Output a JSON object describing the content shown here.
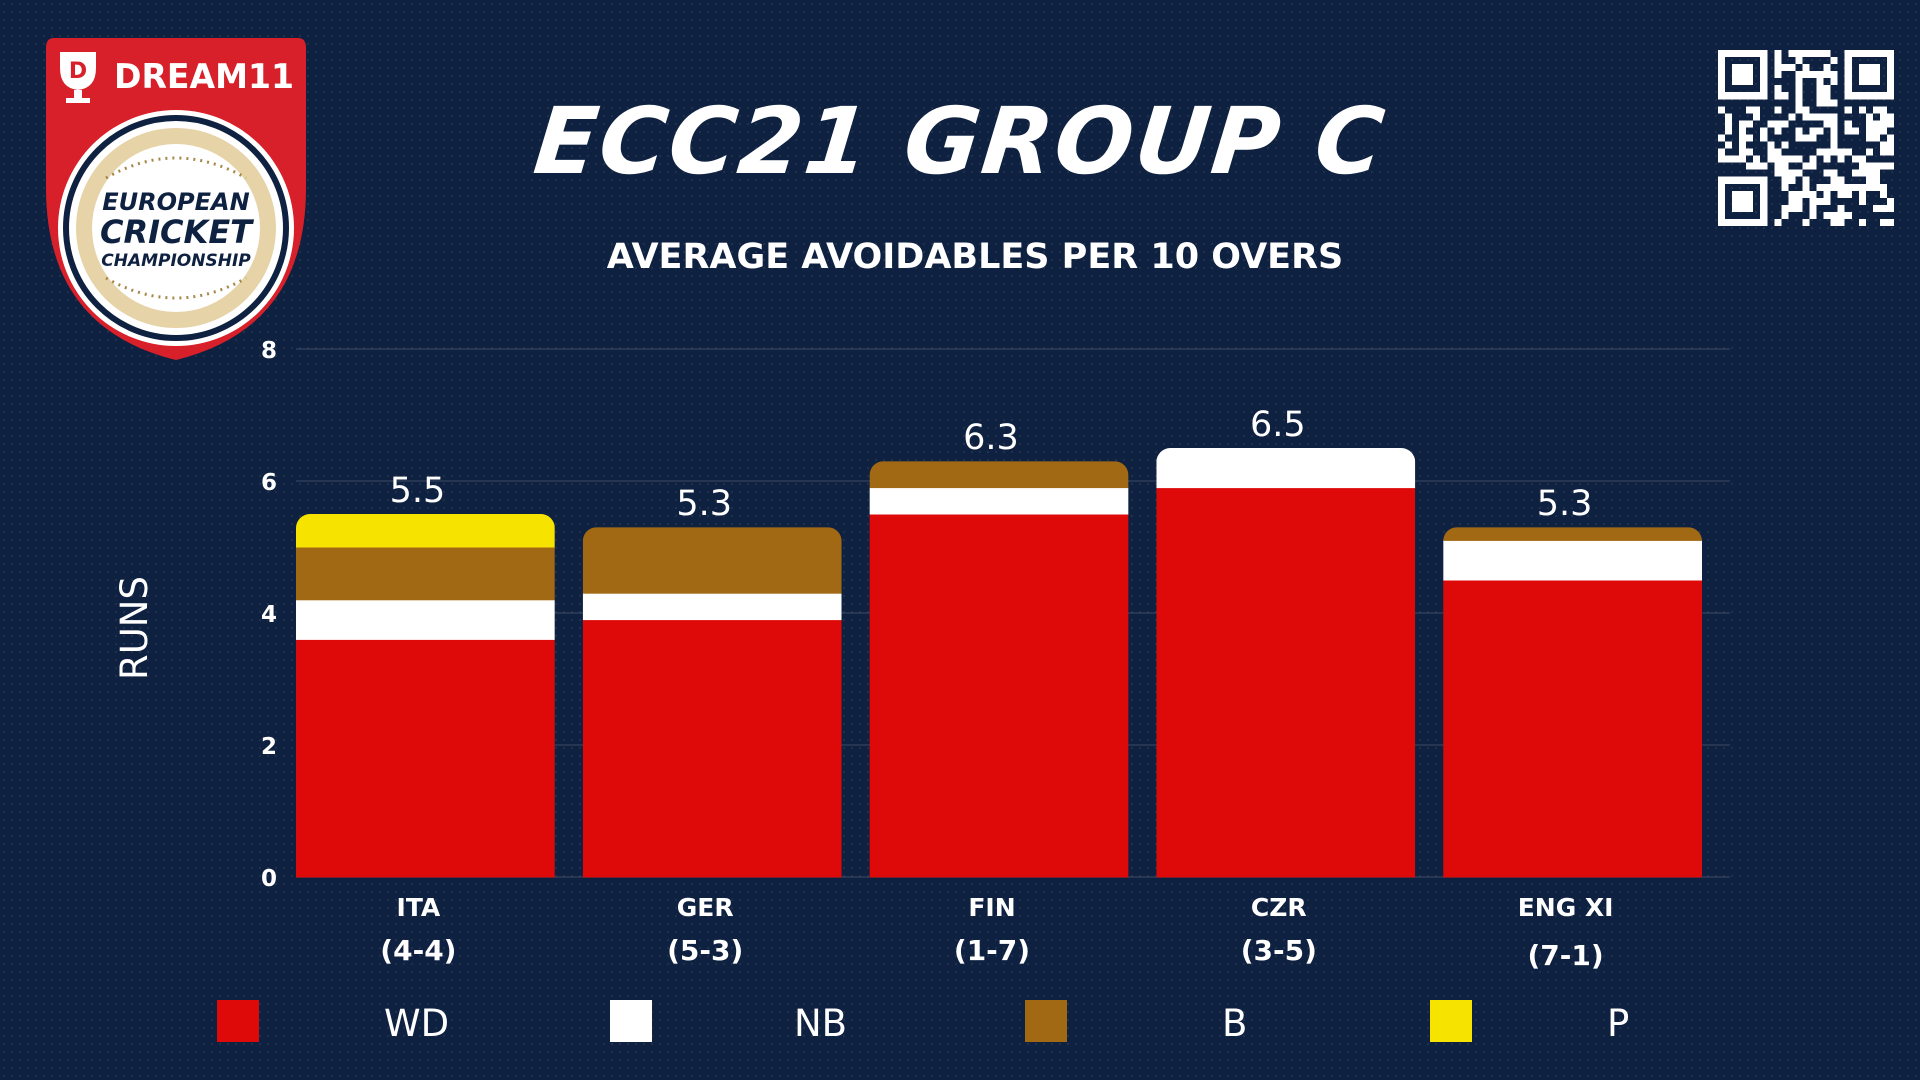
{
  "logo": {
    "brand": "DREAM11",
    "line1": "EUROPEAN",
    "line2": "CRICKET",
    "line3": "CHAMPIONSHIP"
  },
  "header": {
    "title": "ECC21 GROUP C",
    "subtitle": "AVERAGE AVOIDABLES PER 10 OVERS"
  },
  "colors": {
    "background": "#0f2140",
    "WD": "#de0a0a",
    "NB": "#ffffff",
    "B": "#a16914",
    "P": "#f7e300"
  },
  "chart_data": {
    "type": "bar",
    "stacked": true,
    "title": "AVERAGE AVOIDABLES PER 10 OVERS",
    "ylabel": "RUNS",
    "xlabel": "",
    "ylim": [
      0,
      8
    ],
    "yticks": [
      0,
      2,
      4,
      6,
      8
    ],
    "grid": true,
    "legend_position": "bottom",
    "categories": [
      "ITA",
      "GER",
      "FIN",
      "CZR",
      "ENG XI"
    ],
    "records": [
      "(4-4)",
      "(5-3)",
      "(1-7)",
      "(3-5)",
      "(7-1)"
    ],
    "series": [
      {
        "name": "WD",
        "values": [
          3.6,
          3.9,
          5.5,
          5.9,
          4.5
        ]
      },
      {
        "name": "NB",
        "values": [
          0.6,
          0.4,
          0.4,
          0.6,
          0.6
        ]
      },
      {
        "name": "B",
        "values": [
          0.8,
          1.0,
          0.4,
          0.0,
          0.2
        ]
      },
      {
        "name": "P",
        "values": [
          0.5,
          0.0,
          0.0,
          0.0,
          0.0
        ]
      }
    ],
    "totals": [
      "5.5",
      "5.3",
      "6.3",
      "6.5",
      "5.3"
    ]
  }
}
